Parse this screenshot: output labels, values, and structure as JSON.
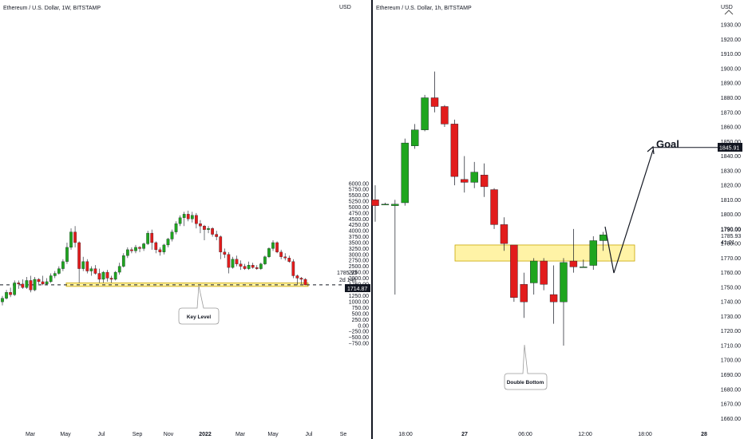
{
  "charts": {
    "left": {
      "header": "Ethereum / U.S. Dollar, 1W, BITSTAMP",
      "currency": "USD",
      "y_ticks": [
        "6000.00",
        "5750.00",
        "5500.00",
        "5250.00",
        "5000.00",
        "4750.00",
        "4500.00",
        "4250.00",
        "4000.00",
        "3750.00",
        "3500.00",
        "3250.00",
        "3000.00",
        "2750.00",
        "2500.00",
        "2250.00",
        "2000.00",
        "1750.00",
        "1500.00",
        "1250.00",
        "1000.00",
        "750.00",
        "500.00",
        "250.00",
        "0.00",
        "−250.00",
        "−500.00",
        "−750.00"
      ],
      "x_ticks": [
        "Mar",
        "May",
        "Jul",
        "Sep",
        "Nov",
        "2022",
        "Mar",
        "May",
        "Jul",
        "Se"
      ],
      "price_label": "1785.93",
      "countdown_label": "2d 14h",
      "current_value": "1714.87",
      "annotation": "Key Level"
    },
    "right": {
      "header": "Ethereum / U.S. Dollar, 1h, BITSTAMP",
      "currency": "USD",
      "y_ticks": [
        "1930.00",
        "1920.00",
        "1910.00",
        "1900.00",
        "1890.00",
        "1880.00",
        "1870.00",
        "1860.00",
        "1850.00",
        "1840.00",
        "1830.00",
        "1820.00",
        "1810.00",
        "1800.00",
        "1790.00",
        "1780.00",
        "1770.00",
        "1760.00",
        "1750.00",
        "1740.00",
        "1730.00",
        "1720.00",
        "1710.00",
        "1700.00",
        "1690.00",
        "1680.00",
        "1670.00",
        "1660.00"
      ],
      "x_ticks": [
        "18:00",
        "27",
        "06:00",
        "12:00",
        "18:00",
        "28"
      ],
      "price_label": "1790.00",
      "price_label_2": "1785.93",
      "countdown_label": "41:01",
      "target_value": "1845.91",
      "goal_label": "Goal",
      "annotation": "Double Bottom"
    }
  },
  "colors": {
    "up": "#1fa51f",
    "down": "#e21c1c",
    "zone_fill": "#fff3a6",
    "zone_stroke": "#c9a600",
    "dark_label": "#131722"
  },
  "chart_data": [
    {
      "type": "candlestick",
      "title": "Ethereum / U.S. Dollar, 1W, BITSTAMP",
      "ylabel": "USD",
      "ylim": [
        -850,
        6200
      ],
      "key_level_zone": [
        1650,
        1800
      ],
      "current_price": 1714.87,
      "x_tick_labels": [
        "Mar",
        "May",
        "Jul",
        "Sep",
        "Nov",
        "2022",
        "Mar",
        "May",
        "Jul",
        "Se"
      ],
      "candles": [
        {
          "o": 1000,
          "h": 1250,
          "l": 850,
          "c": 1150
        },
        {
          "o": 1150,
          "h": 1500,
          "l": 1100,
          "c": 1400
        },
        {
          "o": 1400,
          "h": 1600,
          "l": 1200,
          "c": 1300
        },
        {
          "o": 1300,
          "h": 1900,
          "l": 1250,
          "c": 1800
        },
        {
          "o": 1800,
          "h": 1900,
          "l": 1550,
          "c": 1750
        },
        {
          "o": 1750,
          "h": 1950,
          "l": 1550,
          "c": 1600
        },
        {
          "o": 1600,
          "h": 2050,
          "l": 1550,
          "c": 1900
        },
        {
          "o": 1900,
          "h": 2100,
          "l": 1400,
          "c": 1500
        },
        {
          "o": 1500,
          "h": 2050,
          "l": 1450,
          "c": 1950
        },
        {
          "o": 1950,
          "h": 2000,
          "l": 1750,
          "c": 1850
        },
        {
          "o": 1850,
          "h": 2100,
          "l": 1700,
          "c": 1750
        },
        {
          "o": 1750,
          "h": 2000,
          "l": 1700,
          "c": 1850
        },
        {
          "o": 1850,
          "h": 2200,
          "l": 1800,
          "c": 2100
        },
        {
          "o": 2100,
          "h": 2300,
          "l": 2000,
          "c": 2200
        },
        {
          "o": 2200,
          "h": 2500,
          "l": 2150,
          "c": 2400
        },
        {
          "o": 2400,
          "h": 2800,
          "l": 2300,
          "c": 2700
        },
        {
          "o": 2700,
          "h": 3500,
          "l": 2600,
          "c": 3300
        },
        {
          "o": 3300,
          "h": 4100,
          "l": 3200,
          "c": 3950
        },
        {
          "o": 3950,
          "h": 4200,
          "l": 3300,
          "c": 3500
        },
        {
          "o": 3500,
          "h": 3550,
          "l": 1800,
          "c": 2400
        },
        {
          "o": 2400,
          "h": 2900,
          "l": 2300,
          "c": 2700
        },
        {
          "o": 2700,
          "h": 2800,
          "l": 2200,
          "c": 2300
        },
        {
          "o": 2300,
          "h": 2500,
          "l": 2100,
          "c": 2400
        },
        {
          "o": 2400,
          "h": 2550,
          "l": 2150,
          "c": 2200
        },
        {
          "o": 2200,
          "h": 2400,
          "l": 1800,
          "c": 1950
        },
        {
          "o": 1950,
          "h": 2300,
          "l": 1800,
          "c": 2250
        },
        {
          "o": 2250,
          "h": 2350,
          "l": 1850,
          "c": 2000
        },
        {
          "o": 2000,
          "h": 2100,
          "l": 1800,
          "c": 1950
        },
        {
          "o": 1950,
          "h": 2300,
          "l": 1900,
          "c": 2250
        },
        {
          "o": 2250,
          "h": 2650,
          "l": 2150,
          "c": 2500
        },
        {
          "o": 2500,
          "h": 3050,
          "l": 2450,
          "c": 2950
        },
        {
          "o": 2950,
          "h": 3300,
          "l": 2850,
          "c": 3200
        },
        {
          "o": 3200,
          "h": 3300,
          "l": 3050,
          "c": 3150
        },
        {
          "o": 3150,
          "h": 3400,
          "l": 3050,
          "c": 3300
        },
        {
          "o": 3300,
          "h": 3350,
          "l": 3100,
          "c": 3250
        },
        {
          "o": 3250,
          "h": 3500,
          "l": 3150,
          "c": 3450
        },
        {
          "o": 3450,
          "h": 4000,
          "l": 3400,
          "c": 3900
        },
        {
          "o": 3900,
          "h": 4050,
          "l": 3200,
          "c": 3500
        },
        {
          "o": 3500,
          "h": 3550,
          "l": 3050,
          "c": 3200
        },
        {
          "o": 3200,
          "h": 3300,
          "l": 2950,
          "c": 3100
        },
        {
          "o": 3100,
          "h": 3450,
          "l": 3000,
          "c": 3400
        },
        {
          "o": 3400,
          "h": 3700,
          "l": 3300,
          "c": 3650
        },
        {
          "o": 3650,
          "h": 4050,
          "l": 3550,
          "c": 3950
        },
        {
          "o": 3950,
          "h": 4400,
          "l": 3850,
          "c": 4300
        },
        {
          "o": 4300,
          "h": 4650,
          "l": 4200,
          "c": 4550
        },
        {
          "o": 4550,
          "h": 4800,
          "l": 4200,
          "c": 4700
        },
        {
          "o": 4700,
          "h": 4850,
          "l": 4400,
          "c": 4500
        },
        {
          "o": 4500,
          "h": 4800,
          "l": 4350,
          "c": 4650
        },
        {
          "o": 4650,
          "h": 4750,
          "l": 4100,
          "c": 4300
        },
        {
          "o": 4300,
          "h": 4450,
          "l": 3900,
          "c": 4200
        },
        {
          "o": 4200,
          "h": 4250,
          "l": 3600,
          "c": 4050
        },
        {
          "o": 4050,
          "h": 4200,
          "l": 3900,
          "c": 4100
        },
        {
          "o": 4100,
          "h": 4150,
          "l": 3750,
          "c": 3850
        },
        {
          "o": 3850,
          "h": 4000,
          "l": 3600,
          "c": 3750
        },
        {
          "o": 3750,
          "h": 3800,
          "l": 2800,
          "c": 3100
        },
        {
          "o": 3100,
          "h": 3250,
          "l": 2850,
          "c": 3000
        },
        {
          "o": 3000,
          "h": 3100,
          "l": 2200,
          "c": 2450
        },
        {
          "o": 2450,
          "h": 2900,
          "l": 2400,
          "c": 2800
        },
        {
          "o": 2800,
          "h": 2950,
          "l": 2500,
          "c": 2600
        },
        {
          "o": 2600,
          "h": 2750,
          "l": 2350,
          "c": 2500
        },
        {
          "o": 2500,
          "h": 2600,
          "l": 2350,
          "c": 2400
        },
        {
          "o": 2400,
          "h": 2700,
          "l": 2350,
          "c": 2550
        },
        {
          "o": 2550,
          "h": 2650,
          "l": 2400,
          "c": 2450
        },
        {
          "o": 2450,
          "h": 2550,
          "l": 2350,
          "c": 2400
        },
        {
          "o": 2400,
          "h": 2650,
          "l": 2350,
          "c": 2600
        },
        {
          "o": 2600,
          "h": 2950,
          "l": 2550,
          "c": 2900
        },
        {
          "o": 2900,
          "h": 3300,
          "l": 2850,
          "c": 3250
        },
        {
          "o": 3250,
          "h": 3600,
          "l": 3150,
          "c": 3500
        },
        {
          "o": 3500,
          "h": 3550,
          "l": 3050,
          "c": 3100
        },
        {
          "o": 3100,
          "h": 3200,
          "l": 2800,
          "c": 2900
        },
        {
          "o": 2900,
          "h": 3050,
          "l": 2750,
          "c": 2850
        },
        {
          "o": 2850,
          "h": 2950,
          "l": 2650,
          "c": 2700
        },
        {
          "o": 2700,
          "h": 2800,
          "l": 2000,
          "c": 2100
        },
        {
          "o": 2100,
          "h": 2150,
          "l": 1700,
          "c": 2000
        },
        {
          "o": 2000,
          "h": 2050,
          "l": 1750,
          "c": 1950
        },
        {
          "o": 1950,
          "h": 2000,
          "l": 1700,
          "c": 1715
        }
      ]
    },
    {
      "type": "candlestick",
      "title": "Ethereum / U.S. Dollar, 1h, BITSTAMP",
      "ylabel": "USD",
      "ylim": [
        1655,
        1935
      ],
      "resistance_zone": [
        1768,
        1779
      ],
      "goal": 1845.91,
      "x_tick_labels": [
        "18:00",
        "27",
        "06:00",
        "12:00",
        "18:00",
        "28"
      ],
      "candles": [
        {
          "o": 1810,
          "h": 1820,
          "l": 1795,
          "c": 1806
        },
        {
          "o": 1807,
          "h": 1808,
          "l": 1807,
          "c": 1807
        },
        {
          "o": 1806,
          "h": 1810,
          "l": 1745,
          "c": 1807
        },
        {
          "o": 1808,
          "h": 1852,
          "l": 1806,
          "c": 1849
        },
        {
          "o": 1847,
          "h": 1862,
          "l": 1845,
          "c": 1858
        },
        {
          "o": 1858,
          "h": 1882,
          "l": 1857,
          "c": 1880
        },
        {
          "o": 1880,
          "h": 1898,
          "l": 1870,
          "c": 1874
        },
        {
          "o": 1874,
          "h": 1875,
          "l": 1860,
          "c": 1862
        },
        {
          "o": 1862,
          "h": 1865,
          "l": 1820,
          "c": 1826
        },
        {
          "o": 1824,
          "h": 1840,
          "l": 1815,
          "c": 1822
        },
        {
          "o": 1822,
          "h": 1836,
          "l": 1818,
          "c": 1829
        },
        {
          "o": 1827,
          "h": 1835,
          "l": 1812,
          "c": 1819
        },
        {
          "o": 1817,
          "h": 1818,
          "l": 1790,
          "c": 1793
        },
        {
          "o": 1793,
          "h": 1798,
          "l": 1775,
          "c": 1780
        },
        {
          "o": 1779,
          "h": 1777,
          "l": 1740,
          "c": 1743
        },
        {
          "o": 1752,
          "h": 1760,
          "l": 1729,
          "c": 1740
        },
        {
          "o": 1753,
          "h": 1770,
          "l": 1745,
          "c": 1768
        },
        {
          "o": 1768,
          "h": 1770,
          "l": 1748,
          "c": 1752
        },
        {
          "o": 1745,
          "h": 1765,
          "l": 1725,
          "c": 1740
        },
        {
          "o": 1740,
          "h": 1770,
          "l": 1710,
          "c": 1767
        },
        {
          "o": 1768,
          "h": 1790,
          "l": 1760,
          "c": 1764
        },
        {
          "o": 1764,
          "h": 1769,
          "l": 1764,
          "c": 1764
        },
        {
          "o": 1765,
          "h": 1785,
          "l": 1762,
          "c": 1782
        },
        {
          "o": 1782,
          "h": 1788,
          "l": 1775,
          "c": 1786
        }
      ]
    }
  ]
}
